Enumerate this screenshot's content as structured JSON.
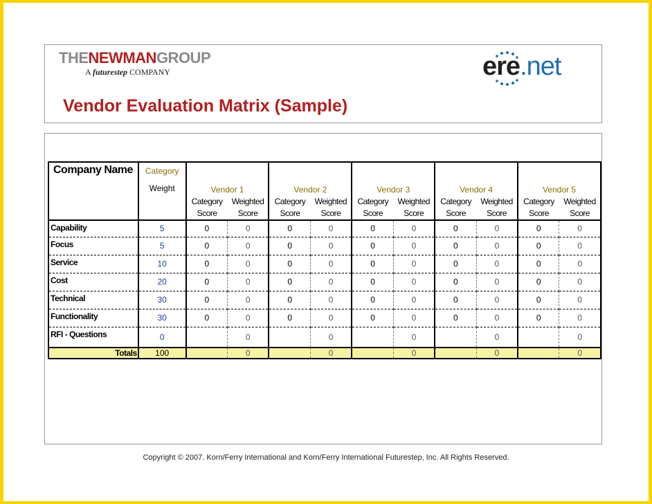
{
  "header": {
    "newman_brand_the": "THE",
    "newman_brand_name": "NEWMAN",
    "newman_brand_group": "GROUP",
    "newman_sub_a": "A",
    "newman_sub_futurestep": "futurestep",
    "newman_sub_company": "COMPANY",
    "ere_part1": "ere",
    "ere_part2": ".net",
    "title": "Vendor Evaluation Matrix (Sample)"
  },
  "matrix": {
    "company_name_label": "Company Name",
    "category_label": "Category",
    "weight_label": "Weight",
    "vendors": [
      "Vendor 1",
      "Vendor 2",
      "Vendor 3",
      "Vendor 4",
      "Vendor 5"
    ],
    "col_category": "Category",
    "col_weighted": "Weighted",
    "col_score": "Score",
    "rows": [
      {
        "label": "Capability",
        "weight": "5",
        "scores": [
          "0",
          "0",
          "0",
          "0",
          "0",
          "0",
          "0",
          "0",
          "0",
          "0"
        ]
      },
      {
        "label": "Focus",
        "weight": "5",
        "scores": [
          "0",
          "0",
          "0",
          "0",
          "0",
          "0",
          "0",
          "0",
          "0",
          "0"
        ]
      },
      {
        "label": "Service",
        "weight": "10",
        "scores": [
          "0",
          "0",
          "0",
          "0",
          "0",
          "0",
          "0",
          "0",
          "0",
          "0"
        ]
      },
      {
        "label": "Cost",
        "weight": "20",
        "scores": [
          "0",
          "0",
          "0",
          "0",
          "0",
          "0",
          "0",
          "0",
          "0",
          "0"
        ]
      },
      {
        "label": "Technical",
        "weight": "30",
        "scores": [
          "0",
          "0",
          "0",
          "0",
          "0",
          "0",
          "0",
          "0",
          "0",
          "0"
        ]
      },
      {
        "label": "Functionality",
        "weight": "30",
        "scores": [
          "0",
          "0",
          "0",
          "0",
          "0",
          "0",
          "0",
          "0",
          "0",
          "0"
        ]
      },
      {
        "label": "RFI - Questions",
        "weight": "0",
        "scores": [
          "",
          "0",
          "",
          "0",
          "",
          "0",
          "",
          "0",
          "",
          "0"
        ]
      }
    ],
    "totals": {
      "label": "Totals",
      "weight": "100",
      "scores": [
        "",
        "0",
        "",
        "0",
        "",
        "0",
        "",
        "0",
        "",
        "0"
      ]
    }
  },
  "footer": {
    "copyright": "Copyright © 2007.  Korn/Ferry International and Korn/Ferry International Futurestep, Inc. All Rights Reserved."
  },
  "colors": {
    "brand_red": "#b22020",
    "ere_blue": "#1f6bb5",
    "gold_header": "#8a6d00",
    "totals_fill": "#f7f3a3",
    "frame_yellow": "#f5d400"
  }
}
